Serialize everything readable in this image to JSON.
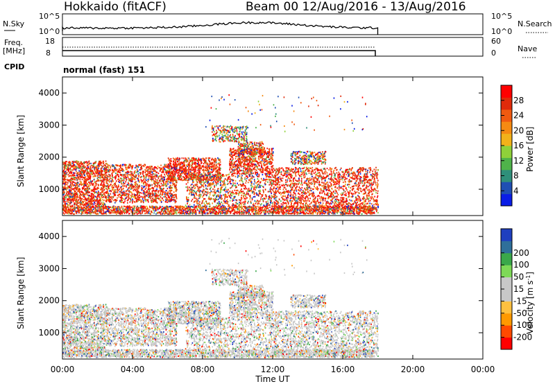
{
  "header": {
    "title": "Hokkaido (fitACF)",
    "beam_info": "Beam 00  12/Aug/2016 - 13/Aug/2016"
  },
  "status_panel": {
    "nsky_label": "N.Sky",
    "nsky_ticks": [
      "10^5",
      "10^0"
    ],
    "nsearch_label": "N.Search",
    "nsearch_ticks": [
      "10^5",
      "10^0"
    ],
    "freq_label_1": "Freq.",
    "freq_label_2": "[MHz]",
    "freq_ticks": [
      "18",
      "8"
    ],
    "nave_label": "Nave",
    "nave_ticks": [
      "60",
      "0"
    ],
    "cpid_label": "CPID",
    "cpid_value": "normal (fast) 151"
  },
  "colors": {
    "power": [
      "#0a1de6",
      "#1f4fb3",
      "#2f8f7a",
      "#4fb34a",
      "#8fd13a",
      "#f2b21a",
      "#f58a12",
      "#f05a10",
      "#e02a0a",
      "#ff0000"
    ],
    "velocity": [
      "#ff0000",
      "#ff4a00",
      "#ff9900",
      "#ffc040",
      "#c8c8c8",
      "#c8c8c8",
      "#7ed957",
      "#3aa84a",
      "#2f6f9a",
      "#1f3fbf"
    ]
  },
  "chart_data": [
    {
      "type": "heatmap",
      "quantity": "power",
      "ylabel": "Slant Range [km]",
      "yticks": [
        "4000",
        "3000",
        "2000",
        "1000"
      ],
      "ylim": [
        180,
        4500
      ],
      "xlim_hours": [
        0,
        24
      ],
      "colorbar_label": "Power [dB]",
      "colorbar_ticks": [
        "28",
        "24",
        "20",
        "16",
        "12",
        "8",
        "4"
      ],
      "colorbar_range": [
        0,
        32
      ]
    },
    {
      "type": "heatmap",
      "quantity": "velocity",
      "ylabel": "Slant Range [km]",
      "yticks": [
        "4000",
        "3000",
        "2000",
        "1000"
      ],
      "ylim": [
        180,
        4500
      ],
      "xlim_hours": [
        0,
        24
      ],
      "colorbar_label": "Velocity [m s",
      "colorbar_label_sup": "-1",
      "colorbar_label_end": "]",
      "colorbar_ticks": [
        "200",
        "100",
        "50",
        "15",
        "-15",
        "-50",
        "-100",
        "-200"
      ]
    }
  ],
  "xaxis": {
    "label": "Time UT",
    "ticks": [
      "00:00",
      "04:00",
      "08:00",
      "12:00",
      "16:00",
      "20:00",
      "00:00"
    ]
  }
}
